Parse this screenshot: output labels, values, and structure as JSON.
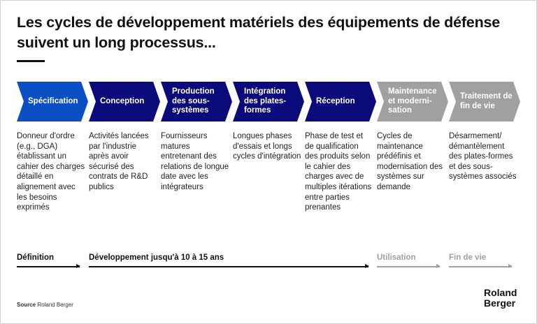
{
  "title": "Les cycles de développement matériels des équipements de défense suivent un long processus...",
  "colors": {
    "highlight": "#0a4fc4",
    "primary": "#0a0a7a",
    "inactive": "#a0a0a0"
  },
  "stages": [
    {
      "label": "Spécification",
      "description": "Donneur d'ordre (e.g., DGA) établissant un cahier des charges détaillé en alignement avec les besoins exprimés",
      "color": "#0a4fc4"
    },
    {
      "label": "Conception",
      "description": "Activités lancées par l'industrie après avoir sécurisé des contrats de R&D publics",
      "color": "#0a0a7a"
    },
    {
      "label": "Production des sous-systèmes",
      "description": "Fournisseurs matures entretenant des relations de longue date avec les intégrateurs",
      "color": "#0a0a7a"
    },
    {
      "label": "Intégration des plates-formes",
      "description": "Longues phases d'essais et longs cycles d'intégration",
      "color": "#0a0a7a"
    },
    {
      "label": "Réception",
      "description": "Phase de test et de qualification des produits selon le cahier des charges avec de multiples itérations entre parties prenantes",
      "color": "#0a0a7a"
    },
    {
      "label": "Maintenance et moderni-sation",
      "description": "Cycles de maintenance prédéfinis et modernisation des systèmes sur demande",
      "color": "#a0a0a0"
    },
    {
      "label": "Traitement de fin de vie",
      "description": "Désarmement/ démantèlement des plates-formes et des sous-systèmes associés",
      "color": "#a0a0a0"
    }
  ],
  "phases": [
    {
      "label": "Définition",
      "color": "#111111"
    },
    {
      "label": "Développement jusqu'à 10 à 15 ans",
      "color": "#111111"
    },
    {
      "label": "Utilisation",
      "color": "#a0a0a0"
    },
    {
      "label": "Fin de vie",
      "color": "#a0a0a0"
    }
  ],
  "source": {
    "prefix": "Source",
    "text": "Roland Berger"
  },
  "logo": "Roland Berger"
}
